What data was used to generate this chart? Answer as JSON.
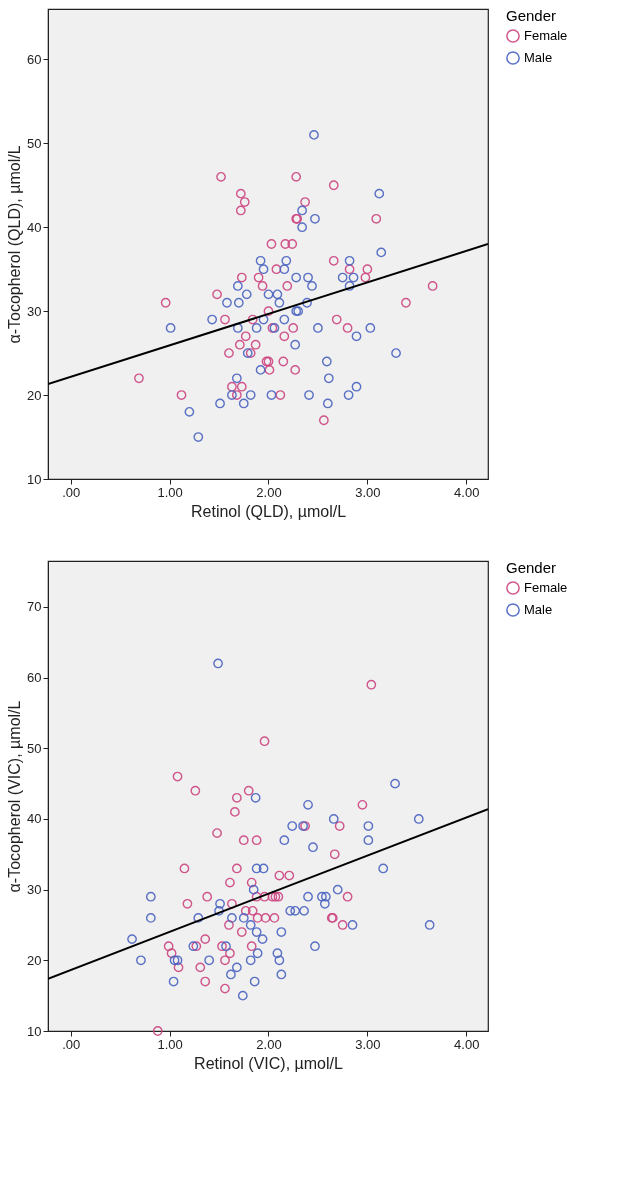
{
  "chart_data": [
    {
      "type": "scatter",
      "xlabel": "Retinol (QLD), µmol/L",
      "ylabel": "α-Tocopherol (QLD), µmol/L",
      "legend_title": "Gender",
      "legend": "top right",
      "marker": "circle",
      "grid": false,
      "xlim": [
        -0.23,
        4.22
      ],
      "xticks": [
        {
          "value": 0,
          "label": ".00"
        },
        {
          "value": 1,
          "label": "1.00"
        },
        {
          "value": 2,
          "label": "2.00"
        },
        {
          "value": 3,
          "label": "3.00"
        },
        {
          "value": 4,
          "label": "4.00"
        }
      ],
      "ylim": [
        10,
        66
      ],
      "yticks": [
        10,
        20,
        30,
        40,
        50,
        60
      ],
      "series": [
        {
          "name": "Female",
          "color": "#cc4580",
          "x": [
            1.52,
            1.72,
            1.76,
            1.72,
            1.73,
            1.48,
            0.96,
            1.56,
            1.84,
            1.77,
            1.71,
            1.6,
            1.82,
            0.69,
            1.63,
            1.73,
            1.12,
            1.68,
            2.28,
            2.66,
            2.37,
            2.28,
            2.29,
            3.09,
            2.03,
            2.17,
            2.24,
            2.66,
            2.08,
            2.82,
            3.0,
            1.9,
            2.98,
            1.94,
            2.19,
            3.66,
            3.39,
            2.0,
            2.69,
            2.04,
            2.25,
            2.8,
            2.16,
            1.87,
            1.98,
            2.0,
            2.15,
            2.01,
            2.27,
            2.12,
            2.56
          ],
          "values": [
            46,
            44,
            43,
            42,
            34,
            32,
            31,
            29,
            29,
            27,
            26,
            25,
            25,
            22,
            21,
            21,
            20,
            20,
            46,
            45,
            43,
            41,
            41,
            41,
            38,
            38,
            38,
            36,
            35,
            35,
            35,
            34,
            34,
            33,
            33,
            33,
            31,
            30,
            29,
            28,
            28,
            28,
            27,
            26,
            24,
            24,
            24,
            23,
            23,
            20,
            17
          ]
        },
        {
          "name": "Male",
          "color": "#4a63c0",
          "x": [
            1.69,
            1.78,
            1.58,
            1.7,
            1.01,
            1.43,
            1.69,
            1.79,
            1.68,
            1.63,
            1.82,
            1.51,
            1.75,
            1.2,
            1.29,
            2.46,
            3.12,
            2.34,
            2.47,
            2.34,
            3.14,
            1.92,
            2.18,
            2.82,
            1.95,
            2.16,
            2.28,
            2.4,
            2.75,
            2.86,
            2.44,
            2.82,
            2.0,
            2.09,
            2.11,
            2.39,
            2.28,
            2.3,
            1.95,
            2.16,
            1.88,
            2.06,
            2.5,
            3.03,
            2.89,
            2.27,
            3.29,
            2.59,
            1.92,
            2.61,
            2.89,
            2.03,
            2.41,
            2.81,
            2.6
          ],
          "values": [
            33,
            32,
            31,
            31,
            28,
            29,
            28,
            25,
            22,
            20,
            20,
            19,
            19,
            18,
            15,
            51,
            44,
            42,
            41,
            40,
            37,
            36,
            36,
            36,
            35,
            35,
            34,
            34,
            34,
            34,
            33,
            33,
            32,
            32,
            31,
            31,
            30,
            30,
            29,
            29,
            28,
            28,
            28,
            28,
            27,
            26,
            25,
            24,
            23,
            22,
            21,
            20,
            20,
            20,
            19
          ]
        },
        {
          "type": "line",
          "color": "#000000",
          "marker": "none",
          "x": [
            -0.23,
            4.22
          ],
          "values": [
            21.3,
            38
          ]
        }
      ]
    },
    {
      "type": "scatter",
      "xlabel": "Retinol (VIC), µmol/L",
      "ylabel": "α-Tocopherol (VIC), µmol/L",
      "legend_title": "Gender",
      "legend": "top right",
      "marker": "circle",
      "grid": false,
      "xlim": [
        -0.23,
        4.22
      ],
      "xticks": [
        {
          "value": 0,
          "label": ".00"
        },
        {
          "value": 1,
          "label": "1.00"
        },
        {
          "value": 2,
          "label": "2.00"
        },
        {
          "value": 3,
          "label": "3.00"
        },
        {
          "value": 4,
          "label": "4.00"
        }
      ],
      "ylim": [
        10,
        76.5
      ],
      "yticks": [
        10,
        20,
        30,
        40,
        50,
        60,
        70
      ],
      "series": [
        {
          "name": "Female",
          "color": "#cc4580",
          "x": [
            1.08,
            1.26,
            1.8,
            1.68,
            1.66,
            1.48,
            1.75,
            1.88,
            1.15,
            1.68,
            1.61,
            1.83,
            1.38,
            1.18,
            1.63,
            1.77,
            1.84,
            1.89,
            1.6,
            1.36,
            1.73,
            0.99,
            1.27,
            1.53,
            1.83,
            1.02,
            1.61,
            1.56,
            1.09,
            1.31,
            1.36,
            1.56,
            0.88,
            3.04,
            1.96,
            2.95,
            2.37,
            2.72,
            2.67,
            2.11,
            2.21,
            1.88,
            1.96,
            2.04,
            2.07,
            2.1,
            2.8,
            1.97,
            2.06,
            2.64,
            2.65,
            2.75
          ],
          "values": [
            46,
            44,
            44,
            43,
            41,
            38,
            37,
            37,
            33,
            33,
            31,
            31,
            29,
            28,
            28,
            27,
            27,
            26,
            25,
            23,
            24,
            22,
            22,
            22,
            22,
            21,
            21,
            20,
            19,
            19,
            17,
            16,
            10,
            59,
            51,
            42,
            39,
            39,
            35,
            32,
            32,
            29,
            29,
            29,
            29,
            29,
            29,
            26,
            26,
            26,
            26,
            25
          ]
        },
        {
          "name": "Male",
          "color": "#4a63c0",
          "x": [
            1.49,
            1.87,
            1.88,
            1.85,
            0.81,
            1.51,
            1.5,
            0.81,
            1.29,
            1.63,
            1.75,
            1.82,
            0.62,
            1.88,
            1.24,
            1.57,
            0.71,
            1.05,
            1.08,
            1.4,
            1.82,
            1.68,
            1.04,
            1.62,
            1.86,
            1.74,
            3.28,
            2.4,
            2.66,
            3.52,
            2.24,
            2.35,
            3.01,
            2.16,
            3.01,
            2.45,
            1.95,
            3.16,
            2.7,
            2.4,
            2.54,
            2.58,
            2.22,
            2.27,
            2.36,
            2.57,
            2.85,
            3.63,
            2.13,
            1.94,
            2.47,
            1.89,
            2.09,
            2.11,
            2.13
          ],
          "values": [
            62,
            43,
            33,
            30,
            29,
            28,
            27,
            26,
            26,
            26,
            26,
            25,
            23,
            24,
            22,
            22,
            20,
            20,
            20,
            20,
            20,
            19,
            17,
            18,
            17,
            15,
            45,
            42,
            40,
            40,
            39,
            39,
            39,
            37,
            37,
            36,
            33,
            33,
            30,
            29,
            29,
            29,
            27,
            27,
            27,
            28,
            25,
            25,
            24,
            23,
            22,
            21,
            21,
            20,
            18
          ]
        },
        {
          "type": "line",
          "color": "#000000",
          "marker": "none",
          "x": [
            -0.23,
            4.22
          ],
          "values": [
            17.4,
            41.4
          ]
        }
      ]
    }
  ]
}
